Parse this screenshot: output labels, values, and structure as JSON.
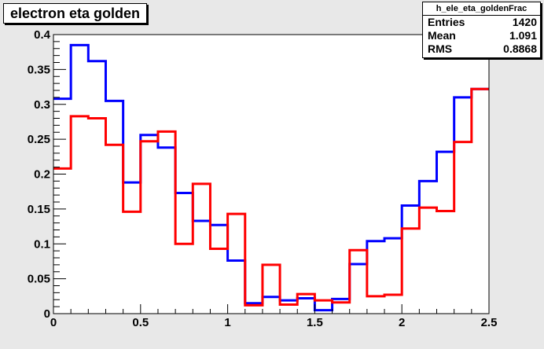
{
  "title": "electron eta golden",
  "stats": {
    "name": "h_ele_eta_goldenFrac",
    "rows": [
      {
        "label": "Entries",
        "value": "1420"
      },
      {
        "label": "Mean",
        "value": "1.091"
      },
      {
        "label": "RMS",
        "value": "0.8868"
      }
    ]
  },
  "colors": {
    "blue": "#0000ff",
    "red": "#ff0000",
    "frame_bg": "#ffffff",
    "canvas_bg": "#e8e8e8"
  },
  "chart_data": {
    "type": "line",
    "title": "electron eta golden",
    "xlabel": "",
    "ylabel": "",
    "xlim": [
      0,
      2.5
    ],
    "ylim": [
      0,
      0.4
    ],
    "grid": false,
    "x_ticks": [
      0,
      0.5,
      1,
      1.5,
      2,
      2.5
    ],
    "x_tick_labels": [
      "0",
      "0.5",
      "1",
      "1.5",
      "2",
      "2.5"
    ],
    "y_ticks": [
      0,
      0.05,
      0.1,
      0.15,
      0.2,
      0.25,
      0.3,
      0.35,
      0.4
    ],
    "y_tick_labels": [
      "0",
      "0.05",
      "0.1",
      "0.15",
      "0.2",
      "0.25",
      "0.3",
      "0.35",
      "0.4"
    ],
    "bin_edges": [
      0,
      0.1,
      0.2,
      0.3,
      0.4,
      0.5,
      0.6,
      0.7,
      0.8,
      0.9,
      1.0,
      1.1,
      1.2,
      1.3,
      1.4,
      1.5,
      1.6,
      1.7,
      1.8,
      1.9,
      2.0,
      2.1,
      2.2,
      2.3,
      2.4,
      2.5
    ],
    "series": [
      {
        "color": "#0000ff",
        "values": [
          0.308,
          0.385,
          0.362,
          0.305,
          0.188,
          0.256,
          0.238,
          0.173,
          0.133,
          0.127,
          0.076,
          0.015,
          0.024,
          0.019,
          0.022,
          0.005,
          0.021,
          0.071,
          0.104,
          0.108,
          0.155,
          0.19,
          0.232,
          0.31,
          0.322
        ]
      },
      {
        "color": "#ff0000",
        "values": [
          0.208,
          0.283,
          0.28,
          0.242,
          0.146,
          0.247,
          0.261,
          0.1,
          0.186,
          0.093,
          0.143,
          0.012,
          0.07,
          0.013,
          0.028,
          0.019,
          0.016,
          0.091,
          0.025,
          0.027,
          0.122,
          0.152,
          0.147,
          0.246,
          0.322
        ]
      }
    ]
  }
}
